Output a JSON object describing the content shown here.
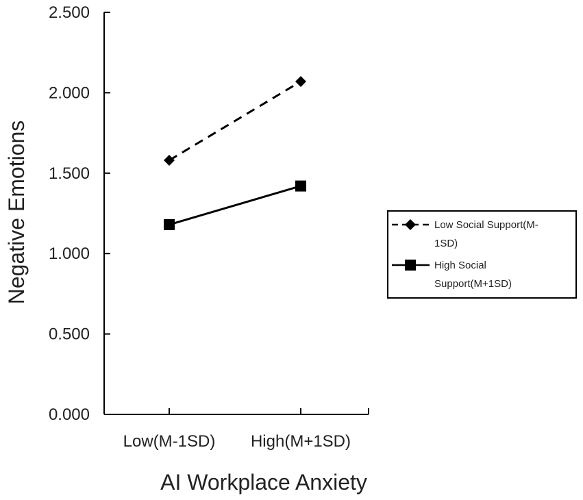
{
  "chart_data": {
    "type": "line",
    "title": "",
    "xlabel": "AI Workplace Anxiety",
    "ylabel": "Negative Emotions",
    "categories": [
      "Low(M-1SD)",
      "High(M+1SD)"
    ],
    "ylim": [
      0,
      2.5
    ],
    "yticks": [
      "0.000",
      "0.500",
      "1.000",
      "1.500",
      "2.000",
      "2.500"
    ],
    "ytick_values": [
      0,
      0.5,
      1.0,
      1.5,
      2.0,
      2.5
    ],
    "grid": false,
    "legend_position": "right",
    "series": [
      {
        "name": "Low Social Support(M-1SD)",
        "legend_lines": [
          "Low Social Support(M-",
          "1SD)"
        ],
        "values": [
          1.58,
          2.07
        ],
        "line_style": "dashed",
        "marker": "diamond",
        "color": "#000000"
      },
      {
        "name": "High Social Support(M+1SD)",
        "legend_lines": [
          "High Social",
          "Support(M+1SD)"
        ],
        "values": [
          1.18,
          1.42
        ],
        "line_style": "solid",
        "marker": "square",
        "color": "#000000"
      }
    ]
  }
}
